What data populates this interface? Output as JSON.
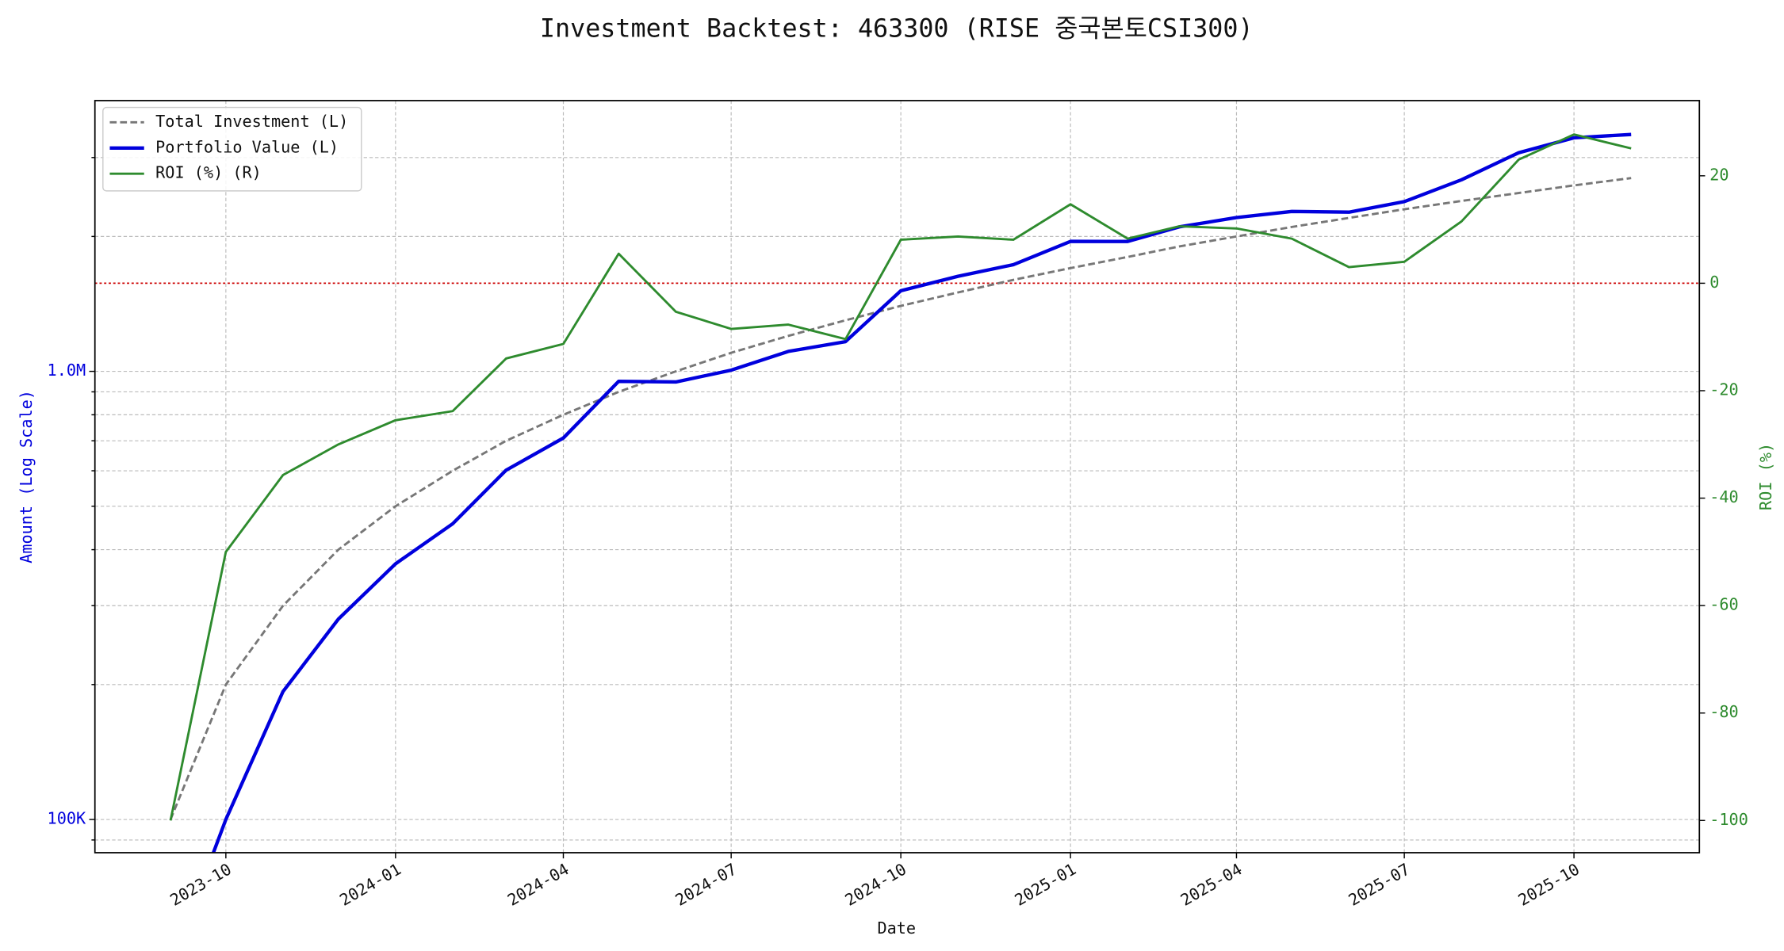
{
  "chart_data": {
    "type": "line",
    "title": "Investment Backtest: 463300 (RISE 중국본토CSI300)",
    "xlabel": "Date",
    "ylabel": "Amount (Log Scale)",
    "y2label": "ROI (%)",
    "x": [
      "2023-09",
      "2023-10",
      "2023-11",
      "2023-12",
      "2024-01",
      "2024-02",
      "2024-03",
      "2024-04",
      "2024-05",
      "2024-06",
      "2024-07",
      "2024-08",
      "2024-09",
      "2024-10",
      "2024-11",
      "2024-12",
      "2025-01",
      "2025-02",
      "2025-03",
      "2025-04",
      "2025-05",
      "2025-06",
      "2025-07",
      "2025-08",
      "2025-09",
      "2025-10",
      "2025-11"
    ],
    "series": [
      {
        "name": "Total Investment (L)",
        "color": "#777777",
        "style": "dashed",
        "width": 2,
        "axis": "y",
        "values": [
          100000,
          200000,
          300000,
          400000,
          500000,
          600000,
          700000,
          800000,
          900000,
          1000000,
          1100000,
          1200000,
          1300000,
          1400000,
          1500000,
          1600000,
          1700000,
          1800000,
          1900000,
          2000000,
          2100000,
          2200000,
          2300000,
          2400000,
          2500000,
          2600000,
          2700000
        ]
      },
      {
        "name": "Portfolio Value (L)",
        "color": "#0000dd",
        "style": "solid",
        "width": 3,
        "axis": "y",
        "values": [
          0,
          100000,
          193000,
          280000,
          372000,
          457000,
          602000,
          710000,
          950000,
          947000,
          1006000,
          1108000,
          1165000,
          1513000,
          1630000,
          1730000,
          1950000,
          1949000,
          2101000,
          2204000,
          2274000,
          2266000,
          2392000,
          2676000,
          3075000,
          3320000,
          3378000
        ]
      },
      {
        "name": "ROI (%) (R)",
        "color": "#2e8b2e",
        "style": "solid",
        "width": 2,
        "axis": "y2",
        "values": [
          -100,
          -50,
          -35.7,
          -30,
          -25.5,
          -23.8,
          -14,
          -11.3,
          5.5,
          -5.3,
          -8.5,
          -7.7,
          -10.4,
          8.1,
          8.7,
          8.1,
          14.7,
          8.3,
          10.6,
          10.2,
          8.3,
          3,
          4,
          11.5,
          23,
          27.7,
          25.1
        ]
      }
    ],
    "xlim": [
      "2023-07-22",
      "2025-12-08"
    ],
    "xticks": [
      "2023-10",
      "2024-01",
      "2024-04",
      "2024-07",
      "2024-10",
      "2025-01",
      "2025-04",
      "2025-07",
      "2025-10"
    ],
    "log_scale_y": true,
    "ylim": [
      84300,
      4020000
    ],
    "yticks": [
      {
        "value": 100000,
        "label": "100K"
      },
      {
        "value": 1000000,
        "label": "1.0M"
      }
    ],
    "yminor": [
      90000,
      200000,
      300000,
      400000,
      500000,
      600000,
      700000,
      800000,
      900000,
      2000000,
      3000000
    ],
    "y2lim": [
      -106,
      34
    ],
    "y2ticks": [
      -100,
      -80,
      -60,
      -40,
      -20,
      0,
      20
    ],
    "reference_line": {
      "axis": "y2",
      "value": 0,
      "color": "#cc0000"
    },
    "grid": true,
    "legend": "upper-left",
    "ylabel_color": "#0000dd",
    "y2label_color": "#2e8b2e"
  }
}
